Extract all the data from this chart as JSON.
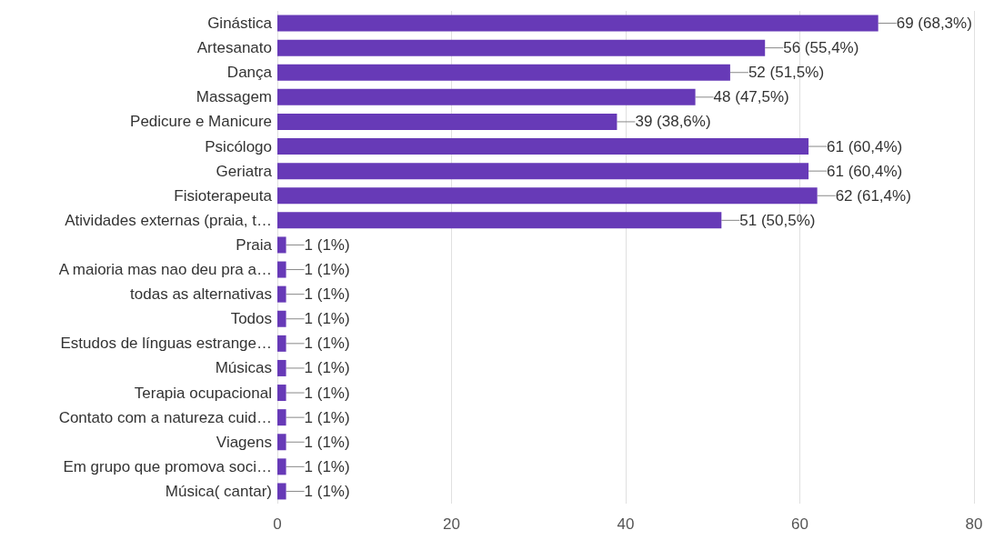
{
  "chart_data": {
    "type": "bar",
    "orientation": "horizontal",
    "categories": [
      "Ginástica",
      "Artesanato",
      "Dança",
      "Massagem",
      "Pedicure e Manicure",
      "Psicólogo",
      "Geriatra",
      "Fisioterapeuta",
      "Atividades externas (praia, t…",
      "Praia",
      "A maioria mas nao deu pra a…",
      "todas as alternativas",
      "Todos",
      "Estudos de línguas estrange…",
      "Músicas",
      "Terapia ocupacional",
      "Contato com a natureza cuid…",
      "Viagens",
      "Em grupo que promova soci…",
      "Música( cantar)"
    ],
    "values": [
      69,
      56,
      52,
      48,
      39,
      61,
      61,
      62,
      51,
      1,
      1,
      1,
      1,
      1,
      1,
      1,
      1,
      1,
      1,
      1
    ],
    "value_labels": [
      "69 (68,3%)",
      "56 (55,4%)",
      "52 (51,5%)",
      "48 (47,5%)",
      "39 (38,6%)",
      "61 (60,4%)",
      "61 (60,4%)",
      "62 (61,4%)",
      "51 (50,5%)",
      "1 (1%)",
      "1 (1%)",
      "1 (1%)",
      "1 (1%)",
      "1 (1%)",
      "1 (1%)",
      "1 (1%)",
      "1 (1%)",
      "1 (1%)",
      "1 (1%)",
      "1 (1%)"
    ],
    "color": "#673ab7",
    "xlim": [
      0,
      80
    ],
    "xticks": [
      0,
      20,
      40,
      60,
      80
    ],
    "grid": "x"
  }
}
